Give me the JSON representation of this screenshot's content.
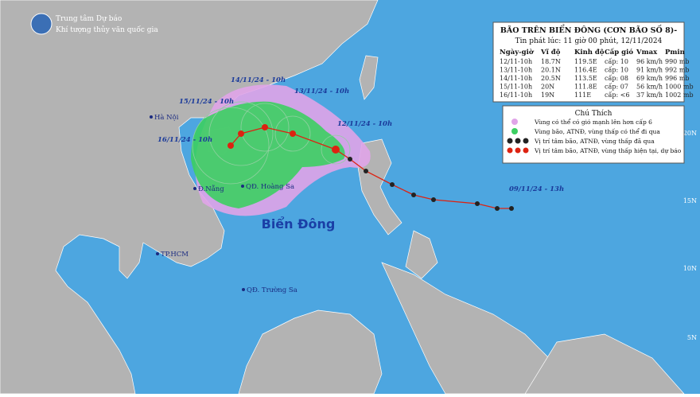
{
  "header": {
    "agency": "Trung tâm Dự báo",
    "agency_sub": "Khí tượng thủy văn quốc gia"
  },
  "info": {
    "title": "BÃO TRÊN BIỂN ĐÔNG (CƠN BÃO SỐ 8)-",
    "issued": "Tin phát lúc: 11 giờ 00 phút, 12/11/2024",
    "columns": [
      "Ngày-giờ",
      "Vĩ độ",
      "Kinh độ",
      "Cấp gió",
      "Vmax",
      "Pmin"
    ],
    "rows": [
      [
        "12/11-10h",
        "18.7N",
        "119.5E",
        "cấp: 10",
        "96 km/h",
        "990 mb"
      ],
      [
        "13/11-10h",
        "20.1N",
        "116.4E",
        "cấp: 10",
        "91 km/h",
        "992 mb"
      ],
      [
        "14/11-10h",
        "20.5N",
        "113.5E",
        "cấp: 08",
        "69 km/h",
        "996 mb"
      ],
      [
        "15/11-10h",
        "20N",
        "111.8E",
        "cấp: 07",
        "56 km/h",
        "1000 mb"
      ],
      [
        "16/11-10h",
        "19N",
        "111E",
        "cấp: <6",
        "37 km/h",
        "1002 mb"
      ]
    ]
  },
  "legend": {
    "title": "Chú Thích",
    "items": [
      "Vùng có thể có gió mạnh lên hơn cấp 6",
      "Vùng bão, ATNĐ, vùng thấp có thể đi qua",
      "Vị trí tâm bão, ATNĐ, vùng thấp đã qua",
      "Vị trí tâm bão, ATNĐ, vùng thấp hiện tại, dự báo"
    ]
  },
  "map": {
    "track_labels": [
      "14/11/24 - 10h",
      "13/11/24 - 10h",
      "15/11/24 - 10h",
      "12/11/24 - 10h",
      "16/11/24 - 10h",
      "09/11/24 - 13h"
    ],
    "places": [
      "Hà Nội",
      "Đ.Nẵng",
      "QĐ. Hoàng Sa",
      "TP.HCM",
      "QĐ. Trường Sa"
    ],
    "sea": "Biển Đông",
    "latitudes": [
      "20N",
      "15N",
      "10N",
      "5N"
    ]
  }
}
